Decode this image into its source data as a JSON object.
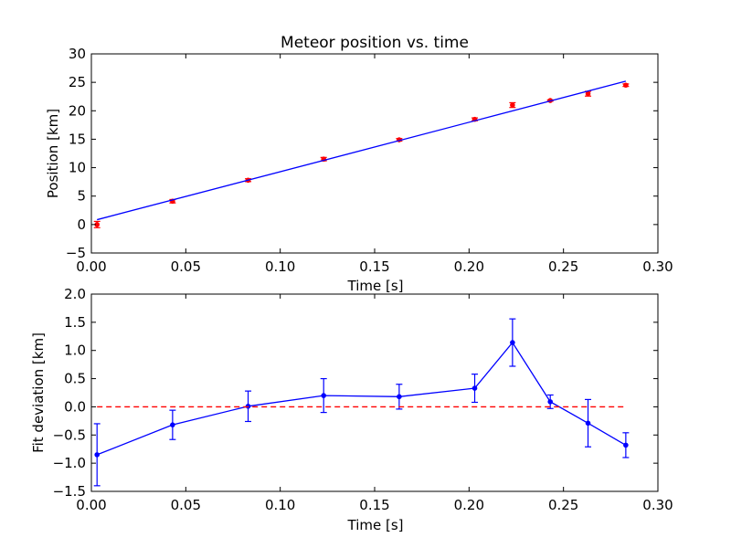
{
  "chart_data": [
    {
      "type": "scatter",
      "title": "Meteor position vs. time",
      "xlabel": "Time [s]",
      "ylabel": "Position [km]",
      "xlim": [
        0.0,
        0.3
      ],
      "ylim": [
        -5,
        30
      ],
      "xticks": [
        "0.00",
        "0.05",
        "0.10",
        "0.15",
        "0.20",
        "0.25",
        "0.30"
      ],
      "yticks": [
        "−5",
        "0",
        "5",
        "10",
        "15",
        "20",
        "25",
        "30"
      ],
      "grid": false,
      "series": [
        {
          "kind": "points_with_errorbars",
          "color": "#ff0000",
          "x": [
            0.003,
            0.043,
            0.083,
            0.123,
            0.163,
            0.203,
            0.223,
            0.243,
            0.263,
            0.283
          ],
          "y": [
            0.0,
            4.1,
            7.8,
            11.5,
            14.9,
            18.5,
            21.0,
            21.8,
            23.0,
            24.5
          ],
          "yerr": [
            0.55,
            0.3,
            0.25,
            0.3,
            0.22,
            0.25,
            0.42,
            0.12,
            0.42,
            0.22
          ]
        },
        {
          "kind": "fit_line",
          "color": "#0000ff",
          "x": [
            0.003,
            0.283
          ],
          "y": [
            0.85,
            25.2
          ]
        }
      ]
    },
    {
      "type": "line",
      "title": "",
      "xlabel": "Time [s]",
      "ylabel": "Fit deviation [km]",
      "xlim": [
        0.0,
        0.3
      ],
      "ylim": [
        -1.5,
        2.0
      ],
      "xticks": [
        "0.00",
        "0.05",
        "0.10",
        "0.15",
        "0.20",
        "0.25",
        "0.30"
      ],
      "yticks": [
        "−1.5",
        "−1.0",
        "−0.5",
        "0.0",
        "0.5",
        "1.0",
        "1.5",
        "2.0"
      ],
      "grid": false,
      "series": [
        {
          "kind": "line_with_errorbars",
          "color": "#0000ff",
          "x": [
            0.003,
            0.043,
            0.083,
            0.123,
            0.163,
            0.203,
            0.223,
            0.243,
            0.263,
            0.283
          ],
          "y": [
            -0.85,
            -0.32,
            0.01,
            0.2,
            0.18,
            0.33,
            1.14,
            0.09,
            -0.29,
            -0.68
          ],
          "yerr": [
            0.55,
            0.26,
            0.27,
            0.3,
            0.22,
            0.25,
            0.42,
            0.12,
            0.42,
            0.22
          ]
        },
        {
          "kind": "reference_line",
          "color": "#ff0000",
          "style": "dashed",
          "x": [
            0.003,
            0.283
          ],
          "y": [
            0.0,
            0.0
          ]
        }
      ]
    }
  ]
}
